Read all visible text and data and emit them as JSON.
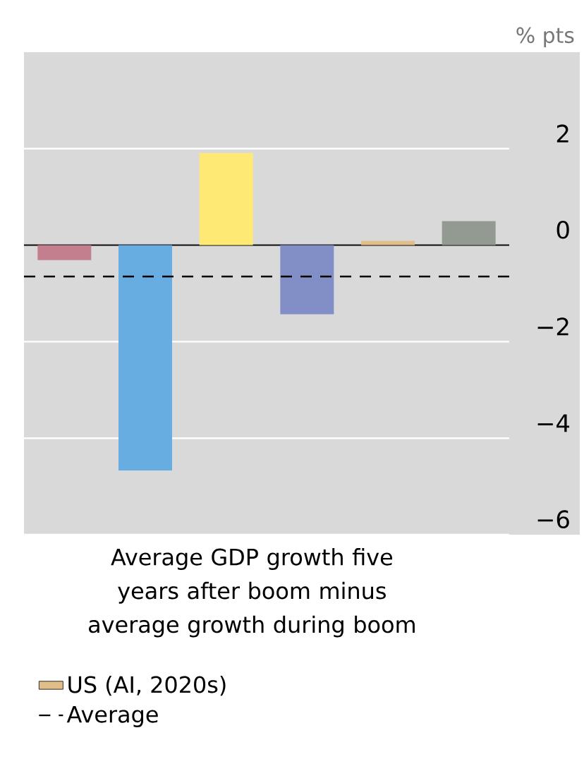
{
  "chart_data": {
    "type": "bar",
    "xlabel": "Average GDP growth five years after boom minus average growth during boom",
    "ylabel": "% pts",
    "categories": [
      null,
      null,
      null,
      null,
      null,
      null
    ],
    "stacked": true,
    "series": [
      {
        "colors": [
          "#c47f8f",
          "#68ade2",
          "#ffe975",
          "#828fc6",
          null,
          "#939a91"
        ],
        "values": [
          -0.31,
          -4.67,
          1.91,
          -1.43,
          null,
          0.5
        ]
      },
      {
        "name": "US (AI, 2020s)",
        "color": "#e1bd8a",
        "values": [
          null,
          null,
          null,
          null,
          0.09,
          null
        ]
      }
    ],
    "ylim": [
      -6,
      4
    ],
    "yticks": [
      {
        "value": -6,
        "label": "−6"
      },
      {
        "value": -4,
        "label": "−4"
      },
      {
        "value": -2,
        "label": "−2"
      },
      0,
      2
    ],
    "grid": "y",
    "tick_labels": "y",
    "legend": "bottom",
    "ref_lines": [
      {
        "axis": "y",
        "value": -0.65,
        "label": "Average",
        "line_style": "dashed",
        "color": "#000000"
      }
    ]
  }
}
